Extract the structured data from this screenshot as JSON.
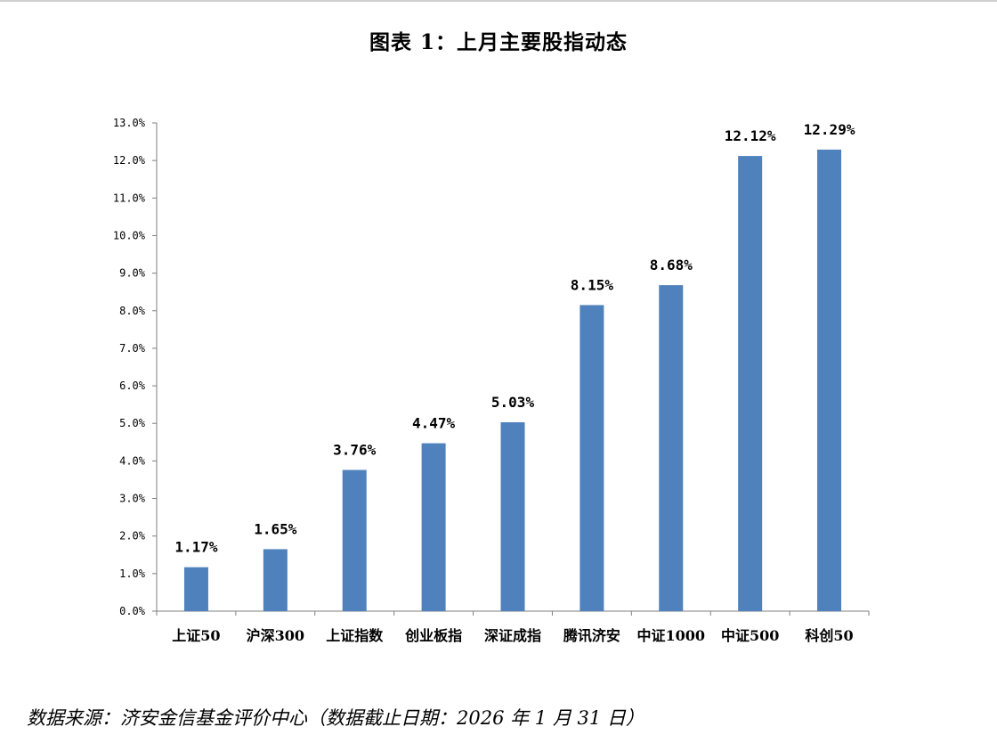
{
  "chart_data": {
    "type": "bar",
    "title": "图表 1：上月主要股指动态",
    "categories": [
      "上证50",
      "沪深300",
      "上证指数",
      "创业板指",
      "深证成指",
      "腾讯济安",
      "中证1000",
      "中证500",
      "科创50"
    ],
    "values": [
      1.17,
      1.65,
      3.76,
      4.47,
      5.03,
      8.15,
      8.68,
      12.12,
      12.29
    ],
    "data_labels": [
      "1.17%",
      "1.65%",
      "3.76%",
      "4.47%",
      "5.03%",
      "8.15%",
      "8.68%",
      "12.12%",
      "12.29%"
    ],
    "y_ticks": [
      0,
      1,
      2,
      3,
      4,
      5,
      6,
      7,
      8,
      9,
      10,
      11,
      12,
      13
    ],
    "y_tick_labels": [
      "0.0%",
      "1.0%",
      "2.0%",
      "3.0%",
      "4.0%",
      "5.0%",
      "6.0%",
      "7.0%",
      "8.0%",
      "9.0%",
      "10.0%",
      "11.0%",
      "12.0%",
      "13.0%"
    ],
    "ylim": [
      0,
      13
    ],
    "xlabel": "",
    "ylabel": "",
    "grid": false,
    "legend": "none",
    "bar_color": "#4f81bd"
  },
  "source_note": "数据来源：济安金信基金评价中心（数据截止日期：2026 年 1 月 31 日）"
}
